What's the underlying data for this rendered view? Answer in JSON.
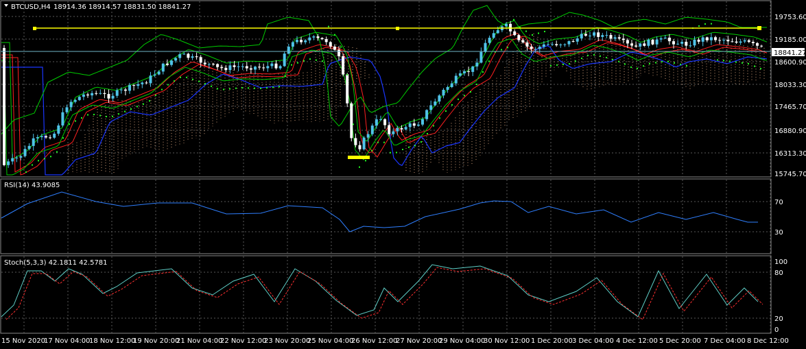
{
  "header": {
    "symbol": "BTCUSD,H4",
    "ohlc": "18914.36 18914.57 18831.50 18841.27"
  },
  "price_axis": {
    "ticks": [
      "19753.60",
      "19185.00",
      "18600.90",
      "18033.30",
      "17465.70",
      "16880.90",
      "16313.30",
      "15745.70"
    ],
    "current_price": "18841.27"
  },
  "rsi": {
    "label": "RSI(14) 43.9085",
    "ticks": [
      "70",
      "30"
    ]
  },
  "stoch": {
    "label": "Stoch(5,3,3) 42.1811 42.5781",
    "ticks": [
      "100",
      "80",
      "20",
      "0"
    ]
  },
  "time_axis": {
    "labels": [
      "15 Nov 2020",
      "17 Nov 04:00",
      "18 Nov 12:00",
      "19 Nov 20:00",
      "21 Nov 04:00",
      "22 Nov 12:00",
      "23 Nov 20:00",
      "25 Nov 04:00",
      "26 Nov 12:00",
      "27 Nov 20:00",
      "29 Nov 04:00",
      "30 Nov 12:00",
      "1 Dec 20:00",
      "3 Dec 04:00",
      "4 Dec 12:00",
      "5 Dec 20:00",
      "7 Dec 04:00",
      "8 Dec 12:00"
    ]
  },
  "colors": {
    "background": "#000000",
    "grid": "#5a5a5a",
    "bull": "#4fc3e8",
    "bear": "#ffffff",
    "yellow": "#ffff00",
    "rsi": "#2f7fff",
    "stoch_main": "#5fd0c8",
    "stoch_signal": "#ff3030",
    "ma_red": "#ff2020",
    "ma_blue": "#1a36ff",
    "ma_green": "#00cc00",
    "parabolic": "#22ff22",
    "ichimoku": "#d2a07a"
  }
}
